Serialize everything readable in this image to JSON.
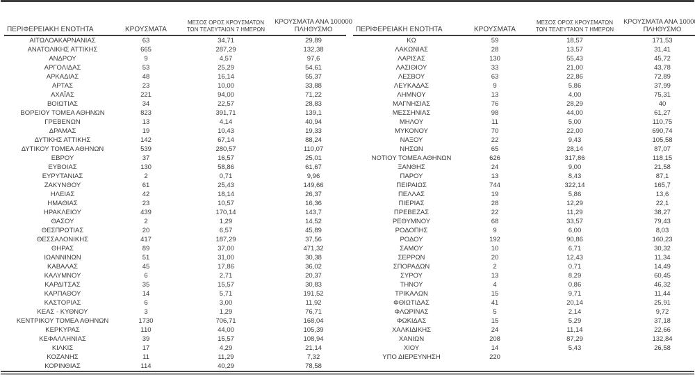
{
  "headers": {
    "region": "ΠΕΡΙΦΕΡΕΙΑΚΗ ΕΝΟΤΗΤΑ",
    "cases": "ΚΡΟΥΣΜΑΤΑ",
    "avg7_line1": "ΜΕΣΟΣ ΟΡΟΣ ΚΡΟΥΣΜΑΤΩΝ",
    "avg7_line2": "ΤΩΝ ΤΕΛΕΥΤΑΙΩΝ 7 ΗΜΕΡΩΝ",
    "per100k_line1": "ΚΡΟΥΣΜΑΤΑ ΑΝΑ 100000",
    "per100k_line2": "ΠΛΗΘΥΣΜΟ"
  },
  "colors": {
    "text": "#3a3a3a",
    "rule_dark": "#3f3f3f",
    "rule_light": "#a9a9a9"
  },
  "tables": [
    {
      "side": "left",
      "rows": [
        [
          "ΑΙΤΩΛΟΑΚΑΡΝΑΝΙΑΣ",
          "63",
          "34,71",
          "29,89"
        ],
        [
          "ΑΝΑΤΟΛΙΚΗΣ ΑΤΤΙΚΗΣ",
          "665",
          "287,29",
          "132,38"
        ],
        [
          "ΑΝΔΡΟΥ",
          "9",
          "4,57",
          "97,6"
        ],
        [
          "ΑΡΓΟΛΙΔΑΣ",
          "53",
          "25,29",
          "54,61"
        ],
        [
          "ΑΡΚΑΔΙΑΣ",
          "48",
          "16,14",
          "55,37"
        ],
        [
          "ΑΡΤΑΣ",
          "23",
          "10,00",
          "33,88"
        ],
        [
          "ΑΧΑΪΑΣ",
          "221",
          "94,00",
          "71,22"
        ],
        [
          "ΒΟΙΩΤΙΑΣ",
          "34",
          "22,57",
          "28,83"
        ],
        [
          "ΒΟΡΕΙΟΥ ΤΟΜΕΑ ΑΘΗΝΩΝ",
          "823",
          "391,71",
          "139,1"
        ],
        [
          "ΓΡΕΒΕΝΩΝ",
          "13",
          "4,14",
          "40,94"
        ],
        [
          "ΔΡΑΜΑΣ",
          "19",
          "10,43",
          "19,33"
        ],
        [
          "ΔΥΤΙΚΗΣ ΑΤΤΙΚΗΣ",
          "142",
          "67,14",
          "88,24"
        ],
        [
          "ΔΥΤΙΚΟΥ ΤΟΜΕΑ ΑΘΗΝΩΝ",
          "539",
          "280,57",
          "110,07"
        ],
        [
          "ΕΒΡΟΥ",
          "37",
          "16,57",
          "25,01"
        ],
        [
          "ΕΥΒΟΙΑΣ",
          "130",
          "58,86",
          "61,67"
        ],
        [
          "ΕΥΡΥΤΑΝΙΑΣ",
          "2",
          "0,71",
          "9,96"
        ],
        [
          "ΖΑΚΥΝΘΟΥ",
          "61",
          "25,43",
          "149,66"
        ],
        [
          "ΗΛΕΙΑΣ",
          "42",
          "18,14",
          "26,37"
        ],
        [
          "ΗΜΑΘΙΑΣ",
          "23",
          "10,57",
          "16,36"
        ],
        [
          "ΗΡΑΚΛΕΙΟΥ",
          "439",
          "170,14",
          "143,7"
        ],
        [
          "ΘΑΣΟΥ",
          "2",
          "1,29",
          "14,52"
        ],
        [
          "ΘΕΣΠΡΩΤΙΑΣ",
          "20",
          "6,57",
          "45,89"
        ],
        [
          "ΘΕΣΣΑΛΟΝΙΚΗΣ",
          "417",
          "187,29",
          "37,56"
        ],
        [
          "ΘΗΡΑΣ",
          "89",
          "37,00",
          "471,32"
        ],
        [
          "ΙΩΑΝΝΙΝΩΝ",
          "51",
          "31,00",
          "30,38"
        ],
        [
          "ΚΑΒΑΛΑΣ",
          "45",
          "17,86",
          "36,02"
        ],
        [
          "ΚΑΛΥΜΝΟΥ",
          "6",
          "2,71",
          "20,37"
        ],
        [
          "ΚΑΡΔΙΤΣΑΣ",
          "35",
          "15,57",
          "30,83"
        ],
        [
          "ΚΑΡΠΑΘΟΥ",
          "14",
          "5,71",
          "191,52"
        ],
        [
          "ΚΑΣΤΟΡΙΑΣ",
          "6",
          "3,00",
          "11,92"
        ],
        [
          "ΚΕΑΣ - ΚΥΘΝΟΥ",
          "3",
          "1,29",
          "76,71"
        ],
        [
          "ΚΕΝΤΡΙΚΟΥ ΤΟΜΕΑ ΑΘΗΝΩΝ",
          "1730",
          "706,71",
          "168,04"
        ],
        [
          "ΚΕΡΚΥΡΑΣ",
          "110",
          "44,00",
          "105,39"
        ],
        [
          "ΚΕΦΑΛΛΗΝΙΑΣ",
          "39",
          "15,57",
          "108,94"
        ],
        [
          "ΚΙΛΚΙΣ",
          "17",
          "4,29",
          "21,14"
        ],
        [
          "ΚΟΖΑΝΗΣ",
          "11",
          "11,29",
          "7,32"
        ],
        [
          "ΚΟΡΙΝΘΙΑΣ",
          "114",
          "40,29",
          "78,58"
        ]
      ]
    },
    {
      "side": "right",
      "rows": [
        [
          "ΚΩ",
          "59",
          "18,57",
          "171,53"
        ],
        [
          "ΛΑΚΩΝΙΑΣ",
          "28",
          "13,57",
          "31,41"
        ],
        [
          "ΛΑΡΙΣΑΣ",
          "130",
          "55,43",
          "45,72"
        ],
        [
          "ΛΑΣΙΘΙΟΥ",
          "33",
          "21,00",
          "43,78"
        ],
        [
          "ΛΕΣΒΟΥ",
          "63",
          "22,86",
          "72,89"
        ],
        [
          "ΛΕΥΚΑΔΑΣ",
          "9",
          "5,86",
          "37,99"
        ],
        [
          "ΛΗΜΝΟΥ",
          "13",
          "4,00",
          "75,31"
        ],
        [
          "ΜΑΓΝΗΣΙΑΣ",
          "76",
          "28,29",
          "40"
        ],
        [
          "ΜΕΣΣΗΝΙΑΣ",
          "98",
          "44,00",
          "61,27"
        ],
        [
          "ΜΗΛΟΥ",
          "11",
          "5,00",
          "110,75"
        ],
        [
          "ΜΥΚΟΝΟΥ",
          "70",
          "22,00",
          "690,74"
        ],
        [
          "ΝΑΞΟΥ",
          "22",
          "9,43",
          "105,58"
        ],
        [
          "ΝΗΣΩΝ",
          "65",
          "28,14",
          "87,07"
        ],
        [
          "ΝΟΤΙΟΥ ΤΟΜΕΑ ΑΘΗΝΩΝ",
          "626",
          "317,86",
          "118,15"
        ],
        [
          "ΞΑΝΘΗΣ",
          "24",
          "9,00",
          "21,58"
        ],
        [
          "ΠΑΡΟΥ",
          "13",
          "8,43",
          "87,1"
        ],
        [
          "ΠΕΙΡΑΙΩΣ",
          "744",
          "322,14",
          "165,7"
        ],
        [
          "ΠΕΛΛΑΣ",
          "19",
          "5,86",
          "13,6"
        ],
        [
          "ΠΙΕΡΙΑΣ",
          "28",
          "12,29",
          "22,1"
        ],
        [
          "ΠΡΕΒΕΖΑΣ",
          "22",
          "11,29",
          "38,27"
        ],
        [
          "ΡΕΘΥΜΝΟΥ",
          "68",
          "33,57",
          "79,43"
        ],
        [
          "ΡΟΔΟΠΗΣ",
          "9",
          "6,00",
          "8,03"
        ],
        [
          "ΡΟΔΟΥ",
          "192",
          "90,86",
          "160,23"
        ],
        [
          "ΣΑΜΟΥ",
          "10",
          "6,71",
          "30,32"
        ],
        [
          "ΣΕΡΡΩΝ",
          "20",
          "12,43",
          "11,34"
        ],
        [
          "ΣΠΟΡΑΔΩΝ",
          "2",
          "0,71",
          "14,49"
        ],
        [
          "ΣΥΡΟΥ",
          "13",
          "8,29",
          "60,45"
        ],
        [
          "ΤΗΝΟΥ",
          "4",
          "0,86",
          "46,32"
        ],
        [
          "ΤΡΙΚΑΛΩΝ",
          "15",
          "9,71",
          "11,44"
        ],
        [
          "ΦΘΙΩΤΙΔΑΣ",
          "41",
          "20,14",
          "25,91"
        ],
        [
          "ΦΛΩΡΙΝΑΣ",
          "5",
          "2,14",
          "9,72"
        ],
        [
          "ΦΩΚΙΔΑΣ",
          "15",
          "5,29",
          "37,18"
        ],
        [
          "ΧΑΛΚΙΔΙΚΗΣ",
          "24",
          "11,14",
          "22,66"
        ],
        [
          "ΧΑΝΙΩΝ",
          "208",
          "87,29",
          "132,84"
        ],
        [
          "ΧΙΟΥ",
          "14",
          "5,43",
          "26,58"
        ],
        [
          "ΥΠΟ ΔΙΕΡΕΥΝΗΣΗ",
          "220",
          "",
          ""
        ]
      ]
    }
  ]
}
